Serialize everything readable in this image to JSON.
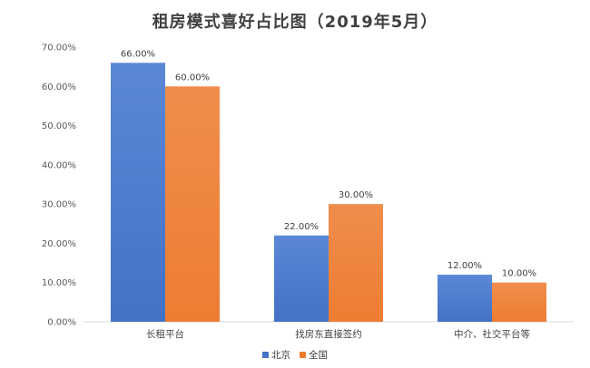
{
  "chart_data": {
    "type": "bar",
    "title": "租房模式喜好占比图（2019年5月）",
    "categories": [
      "长租平台",
      "找房东直接签约",
      "中介、社交平台等"
    ],
    "series": [
      {
        "name": "北京",
        "values": [
          66,
          22,
          12
        ],
        "labels": [
          "66.00%",
          "22.00%",
          "12.00%"
        ],
        "color": "#4472c4"
      },
      {
        "name": "全国",
        "values": [
          60,
          30,
          10
        ],
        "labels": [
          "60.00%",
          "30.00%",
          "10.00%"
        ],
        "color": "#ed7d31"
      }
    ],
    "ylim": [
      0,
      70
    ],
    "yticks": [
      "0.00%",
      "10.00%",
      "20.00%",
      "30.00%",
      "40.00%",
      "50.00%",
      "60.00%",
      "70.00%"
    ],
    "xlabel": "",
    "ylabel": "",
    "grid": false,
    "legend_position": "bottom"
  }
}
